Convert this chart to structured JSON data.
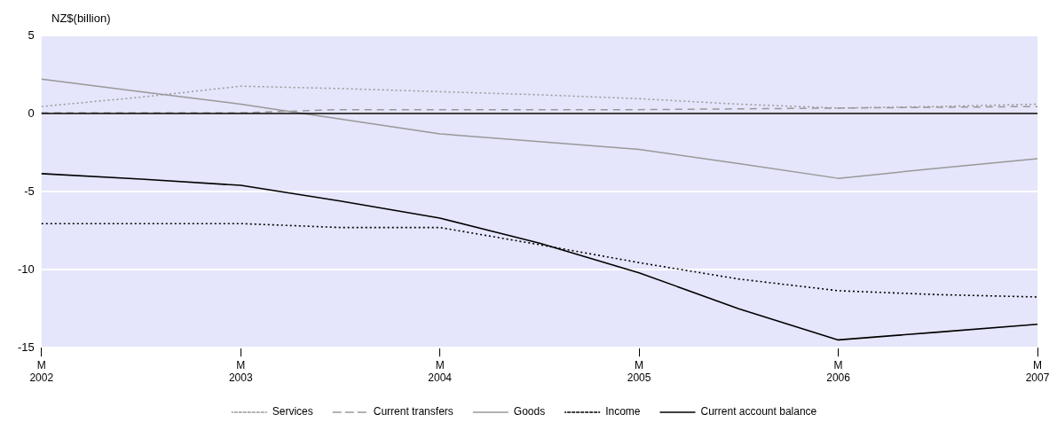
{
  "chart_data": {
    "type": "line",
    "ylabel": "NZ$(billion)",
    "categories": [
      "M\n2002",
      null,
      "M\n2003",
      null,
      "M\n2004",
      null,
      "M\n2005",
      null,
      "M\n2006",
      null,
      "M\n2007"
    ],
    "series": [
      {
        "name": "Services",
        "color": "#999999",
        "line_style": "dotted",
        "values": [
          0.45,
          1.05,
          1.75,
          1.6,
          1.4,
          1.2,
          0.95,
          0.6,
          0.35,
          0.45,
          0.6
        ]
      },
      {
        "name": "Current transfers",
        "color": "#999999",
        "line_style": "dashed",
        "values": [
          0.05,
          0.05,
          0.05,
          0.25,
          0.25,
          0.25,
          0.25,
          0.3,
          0.35,
          0.4,
          0.45
        ]
      },
      {
        "name": "Goods",
        "color": "#999999",
        "line_style": "solid",
        "values": [
          2.2,
          1.4,
          0.6,
          -0.35,
          -1.3,
          -1.8,
          -2.3,
          -3.2,
          -4.15,
          -3.5,
          -2.9
        ]
      },
      {
        "name": "Income",
        "color": "#000000",
        "line_style": "dotted",
        "values": [
          -7.05,
          -7.05,
          -7.05,
          -7.3,
          -7.3,
          -8.4,
          -9.55,
          -10.6,
          -11.35,
          -11.6,
          -11.75
        ]
      },
      {
        "name": "Current account balance",
        "color": "#000000",
        "line_style": "solid",
        "values": [
          -3.85,
          -4.2,
          -4.6,
          -5.6,
          -6.7,
          -8.3,
          -10.2,
          -12.5,
          -14.5,
          -14.0,
          -13.5
        ]
      }
    ],
    "ylim": [
      -15,
      5
    ],
    "yticks": [
      -15,
      -10,
      -5,
      0,
      5
    ],
    "grid": "y",
    "legend": "bottom",
    "marker": "none",
    "ref_lines": [
      {
        "axis": "y",
        "value": 0,
        "color": "#000000"
      }
    ]
  }
}
